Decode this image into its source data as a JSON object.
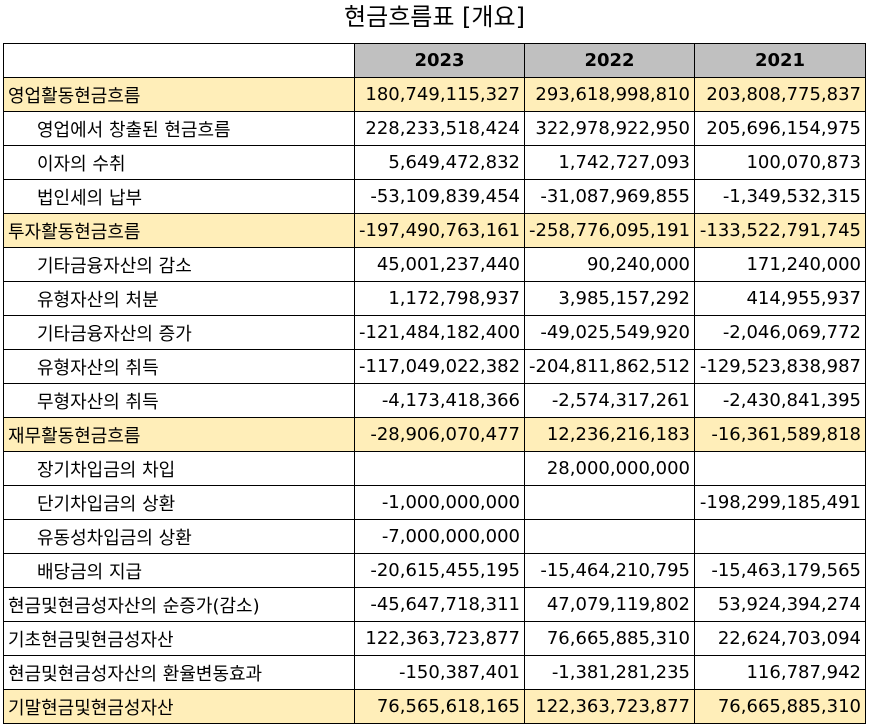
{
  "title": "현금흐름표 [개요]",
  "columns": [
    "",
    "2023",
    "2022",
    "2021"
  ],
  "rows": [
    {
      "label": "영업활동현금흐름",
      "highlight": true,
      "indent": false,
      "values": [
        "180,749,115,327",
        "293,618,998,810",
        "203,808,775,837"
      ]
    },
    {
      "label": "영업에서 창출된 현금흐름",
      "highlight": false,
      "indent": true,
      "values": [
        "228,233,518,424",
        "322,978,922,950",
        "205,696,154,975"
      ]
    },
    {
      "label": "이자의 수취",
      "highlight": false,
      "indent": true,
      "values": [
        "5,649,472,832",
        "1,742,727,093",
        "100,070,873"
      ]
    },
    {
      "label": "법인세의 납부",
      "highlight": false,
      "indent": true,
      "values": [
        "-53,109,839,454",
        "-31,087,969,855",
        "-1,349,532,315"
      ]
    },
    {
      "label": "투자활동현금흐름",
      "highlight": true,
      "indent": false,
      "values": [
        "-197,490,763,161",
        "-258,776,095,191",
        "-133,522,791,745"
      ]
    },
    {
      "label": "기타금융자산의 감소",
      "highlight": false,
      "indent": true,
      "values": [
        "45,001,237,440",
        "90,240,000",
        "171,240,000"
      ]
    },
    {
      "label": "유형자산의 처분",
      "highlight": false,
      "indent": true,
      "values": [
        "1,172,798,937",
        "3,985,157,292",
        "414,955,937"
      ]
    },
    {
      "label": "기타금융자산의 증가",
      "highlight": false,
      "indent": true,
      "values": [
        "-121,484,182,400",
        "-49,025,549,920",
        "-2,046,069,772"
      ]
    },
    {
      "label": "유형자산의 취득",
      "highlight": false,
      "indent": true,
      "values": [
        "-117,049,022,382",
        "-204,811,862,512",
        "-129,523,838,987"
      ]
    },
    {
      "label": "무형자산의 취득",
      "highlight": false,
      "indent": true,
      "values": [
        "-4,173,418,366",
        "-2,574,317,261",
        "-2,430,841,395"
      ]
    },
    {
      "label": "재무활동현금흐름",
      "highlight": true,
      "indent": false,
      "values": [
        "-28,906,070,477",
        "12,236,216,183",
        "-16,361,589,818"
      ]
    },
    {
      "label": "장기차입금의 차입",
      "highlight": false,
      "indent": true,
      "values": [
        "",
        "28,000,000,000",
        ""
      ]
    },
    {
      "label": "단기차입금의 상환",
      "highlight": false,
      "indent": true,
      "values": [
        "-1,000,000,000",
        "",
        "-198,299,185,491"
      ]
    },
    {
      "label": "유동성차입금의 상환",
      "highlight": false,
      "indent": true,
      "values": [
        "-7,000,000,000",
        "",
        ""
      ]
    },
    {
      "label": "배당금의 지급",
      "highlight": false,
      "indent": true,
      "values": [
        "-20,615,455,195",
        "-15,464,210,795",
        "-15,463,179,565"
      ]
    },
    {
      "label": "현금및현금성자산의 순증가(감소)",
      "highlight": false,
      "indent": false,
      "values": [
        "-45,647,718,311",
        "47,079,119,802",
        "53,924,394,274"
      ]
    },
    {
      "label": "기초현금및현금성자산",
      "highlight": false,
      "indent": false,
      "values": [
        "122,363,723,877",
        "76,665,885,310",
        "22,624,703,094"
      ]
    },
    {
      "label": "현금및현금성자산의 환율변동효과",
      "highlight": false,
      "indent": false,
      "values": [
        "-150,387,401",
        "-1,381,281,235",
        "116,787,942"
      ]
    },
    {
      "label": "기말현금및현금성자산",
      "highlight": true,
      "indent": false,
      "values": [
        "76,565,618,165",
        "122,363,723,877",
        "76,665,885,310"
      ]
    }
  ],
  "colors": {
    "header_bg": "#c0c0c0",
    "highlight_bg": "#ffeeb9"
  }
}
